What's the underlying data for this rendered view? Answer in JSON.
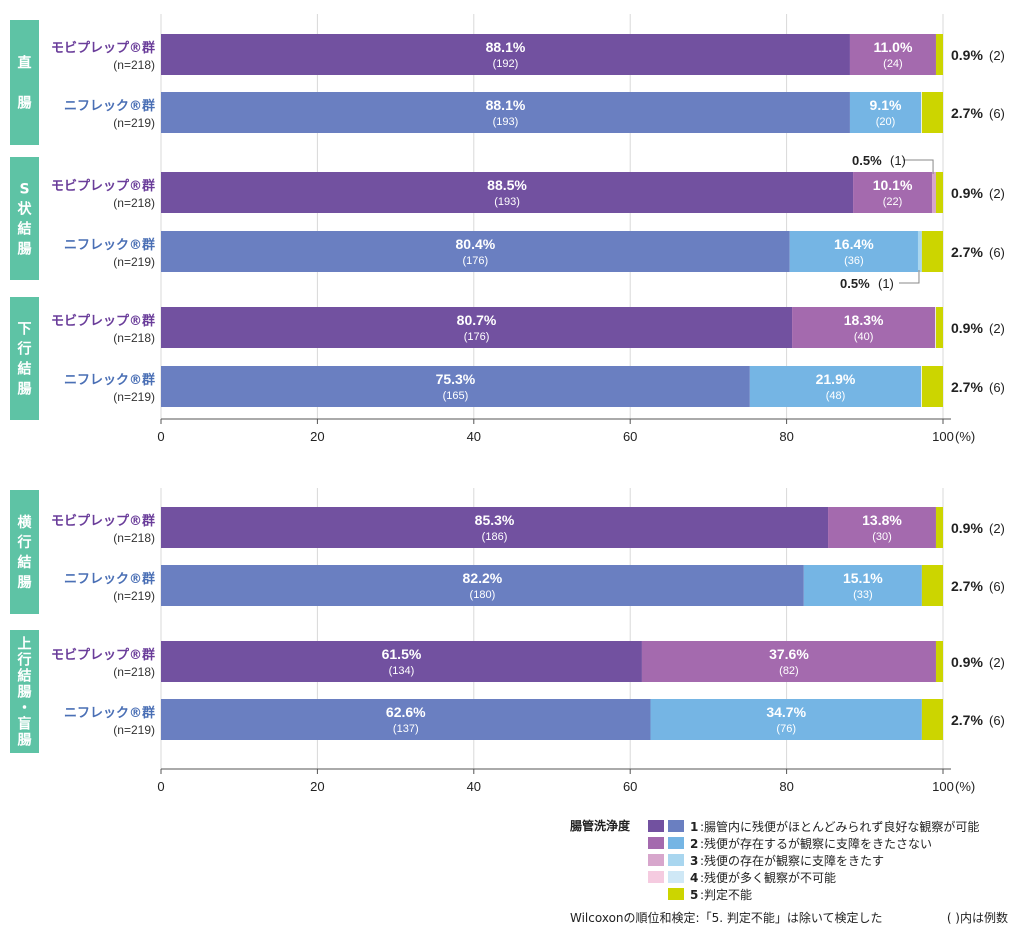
{
  "colors": {
    "mob_1": "#7251a0",
    "mob_2": "#a46aae",
    "mob_3": "#d7a6cc",
    "mob_4": "#f5cbe0",
    "nif_1": "#6a7fc1",
    "nif_2": "#75b5e4",
    "nif_3": "#a9d6ef",
    "nif_4": "#cfe8f6",
    "cat_5": "#ccd500",
    "side": "#5ec3a5",
    "grid": "#d9d9d9"
  },
  "axis_unit": "(%)",
  "chart_data": [
    {
      "type": "bar",
      "orientation": "horizontal",
      "stacked": true,
      "xlim": [
        0,
        100
      ],
      "xticks": [
        "0",
        "20",
        "40",
        "60",
        "80",
        "100"
      ],
      "grid": true,
      "sections": [
        {
          "label": "直腸",
          "rows": [
            {
              "group": "モビプレップ®群",
              "n": "(n=218)",
              "kind": "mob",
              "segments": [
                {
                  "cat": 1,
                  "value": 88.1,
                  "pct": "88.1%",
                  "count": "(192)"
                },
                {
                  "cat": 2,
                  "value": 11.0,
                  "pct": "11.0%",
                  "count": "(24)"
                },
                {
                  "cat": 5,
                  "value": 0.9
                }
              ],
              "right_pct": "0.9%",
              "right_cnt": "(2)"
            },
            {
              "group": "ニフレック®群",
              "n": "(n=219)",
              "kind": "nif",
              "segments": [
                {
                  "cat": 1,
                  "value": 88.1,
                  "pct": "88.1%",
                  "count": "(193)"
                },
                {
                  "cat": 2,
                  "value": 9.1,
                  "pct": "9.1%",
                  "count": "(20)"
                },
                {
                  "cat": 5,
                  "value": 2.7
                }
              ],
              "right_pct": "2.7%",
              "right_cnt": "(6)"
            }
          ]
        },
        {
          "label": "S状結腸",
          "rows": [
            {
              "group": "モビプレップ®群",
              "n": "(n=218)",
              "kind": "mob",
              "segments": [
                {
                  "cat": 1,
                  "value": 88.5,
                  "pct": "88.5%",
                  "count": "(193)"
                },
                {
                  "cat": 2,
                  "value": 10.1,
                  "pct": "10.1%",
                  "count": "(22)"
                },
                {
                  "cat": 3,
                  "value": 0.5
                },
                {
                  "cat": 5,
                  "value": 0.9
                }
              ],
              "right_pct": "0.9%",
              "right_cnt": "(2)",
              "callout": {
                "pct": "0.5%",
                "cnt": "(1)",
                "side": "above"
              }
            },
            {
              "group": "ニフレック®群",
              "n": "(n=219)",
              "kind": "nif",
              "segments": [
                {
                  "cat": 1,
                  "value": 80.4,
                  "pct": "80.4%",
                  "count": "(176)"
                },
                {
                  "cat": 2,
                  "value": 16.4,
                  "pct": "16.4%",
                  "count": "(36)"
                },
                {
                  "cat": 3,
                  "value": 0.5
                },
                {
                  "cat": 5,
                  "value": 2.7
                }
              ],
              "right_pct": "2.7%",
              "right_cnt": "(6)",
              "callout": {
                "pct": "0.5%",
                "cnt": "(1)",
                "side": "below"
              }
            }
          ]
        },
        {
          "label": "下行結腸",
          "rows": [
            {
              "group": "モビプレップ®群",
              "n": "(n=218)",
              "kind": "mob",
              "segments": [
                {
                  "cat": 1,
                  "value": 80.7,
                  "pct": "80.7%",
                  "count": "(176)"
                },
                {
                  "cat": 2,
                  "value": 18.3,
                  "pct": "18.3%",
                  "count": "(40)"
                },
                {
                  "cat": 5,
                  "value": 0.9
                }
              ],
              "right_pct": "0.9%",
              "right_cnt": "(2)"
            },
            {
              "group": "ニフレック®群",
              "n": "(n=219)",
              "kind": "nif",
              "segments": [
                {
                  "cat": 1,
                  "value": 75.3,
                  "pct": "75.3%",
                  "count": "(165)"
                },
                {
                  "cat": 2,
                  "value": 21.9,
                  "pct": "21.9%",
                  "count": "(48)"
                },
                {
                  "cat": 5,
                  "value": 2.7
                }
              ],
              "right_pct": "2.7%",
              "right_cnt": "(6)"
            }
          ]
        }
      ]
    },
    {
      "type": "bar",
      "orientation": "horizontal",
      "stacked": true,
      "xlim": [
        0,
        100
      ],
      "xticks": [
        "0",
        "20",
        "40",
        "60",
        "80",
        "100"
      ],
      "grid": true,
      "sections": [
        {
          "label": "横行結腸",
          "rows": [
            {
              "group": "モビプレップ®群",
              "n": "(n=218)",
              "kind": "mob",
              "segments": [
                {
                  "cat": 1,
                  "value": 85.3,
                  "pct": "85.3%",
                  "count": "(186)"
                },
                {
                  "cat": 2,
                  "value": 13.8,
                  "pct": "13.8%",
                  "count": "(30)"
                },
                {
                  "cat": 5,
                  "value": 0.9
                }
              ],
              "right_pct": "0.9%",
              "right_cnt": "(2)"
            },
            {
              "group": "ニフレック®群",
              "n": "(n=219)",
              "kind": "nif",
              "segments": [
                {
                  "cat": 1,
                  "value": 82.2,
                  "pct": "82.2%",
                  "count": "(180)"
                },
                {
                  "cat": 2,
                  "value": 15.1,
                  "pct": "15.1%",
                  "count": "(33)"
                },
                {
                  "cat": 5,
                  "value": 2.7
                }
              ],
              "right_pct": "2.7%",
              "right_cnt": "(6)"
            }
          ]
        },
        {
          "label": "上行結腸・盲腸",
          "rows": [
            {
              "group": "モビプレップ®群",
              "n": "(n=218)",
              "kind": "mob",
              "segments": [
                {
                  "cat": 1,
                  "value": 61.5,
                  "pct": "61.5%",
                  "count": "(134)"
                },
                {
                  "cat": 2,
                  "value": 37.6,
                  "pct": "37.6%",
                  "count": "(82)"
                },
                {
                  "cat": 5,
                  "value": 0.9
                }
              ],
              "right_pct": "0.9%",
              "right_cnt": "(2)"
            },
            {
              "group": "ニフレック®群",
              "n": "(n=219)",
              "kind": "nif",
              "segments": [
                {
                  "cat": 1,
                  "value": 62.6,
                  "pct": "62.6%",
                  "count": "(137)"
                },
                {
                  "cat": 2,
                  "value": 34.7,
                  "pct": "34.7%",
                  "count": "(76)"
                },
                {
                  "cat": 5,
                  "value": 2.7
                }
              ],
              "right_pct": "2.7%",
              "right_cnt": "(6)"
            }
          ]
        }
      ]
    }
  ],
  "legend": {
    "title": "腸管洗浄度",
    "items": [
      {
        "num": "1",
        "text": ":腸管内に残便がほとんどみられず良好な観察が可能"
      },
      {
        "num": "2",
        "text": ":残便が存在するが観察に支障をきたさない"
      },
      {
        "num": "3",
        "text": ":残便の存在が観察に支障をきたす"
      },
      {
        "num": "4",
        "text": ":残便が多く観察が不可能"
      },
      {
        "num": "5",
        "text": ":判定不能"
      }
    ]
  },
  "footnote": {
    "left": "Wilcoxonの順位和検定:「5. 判定不能」は除いて検定した",
    "right": "(  )内は例数"
  }
}
